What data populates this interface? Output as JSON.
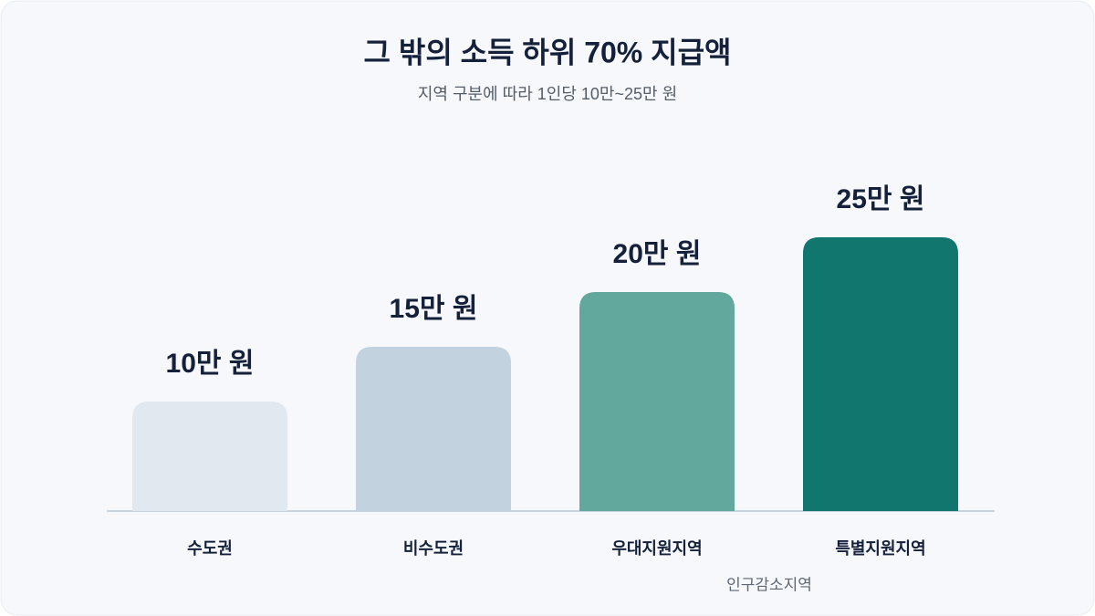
{
  "chart_data": {
    "type": "bar",
    "title": "그 밖의 소득 하위 70% 지급액",
    "subtitle": "지역 구분에 따라 1인당 10만~25만 원",
    "categories": [
      "수도권",
      "비수도권",
      "우대지원지역",
      "특별지원지역"
    ],
    "values": [
      10,
      15,
      20,
      25
    ],
    "value_labels": [
      "10만 원",
      "15만 원",
      "20만 원",
      "25만 원"
    ],
    "colors": [
      "#e1e8ef",
      "#c2d3df",
      "#62a89d",
      "#10766e"
    ],
    "annotation": "인구감소지역"
  }
}
